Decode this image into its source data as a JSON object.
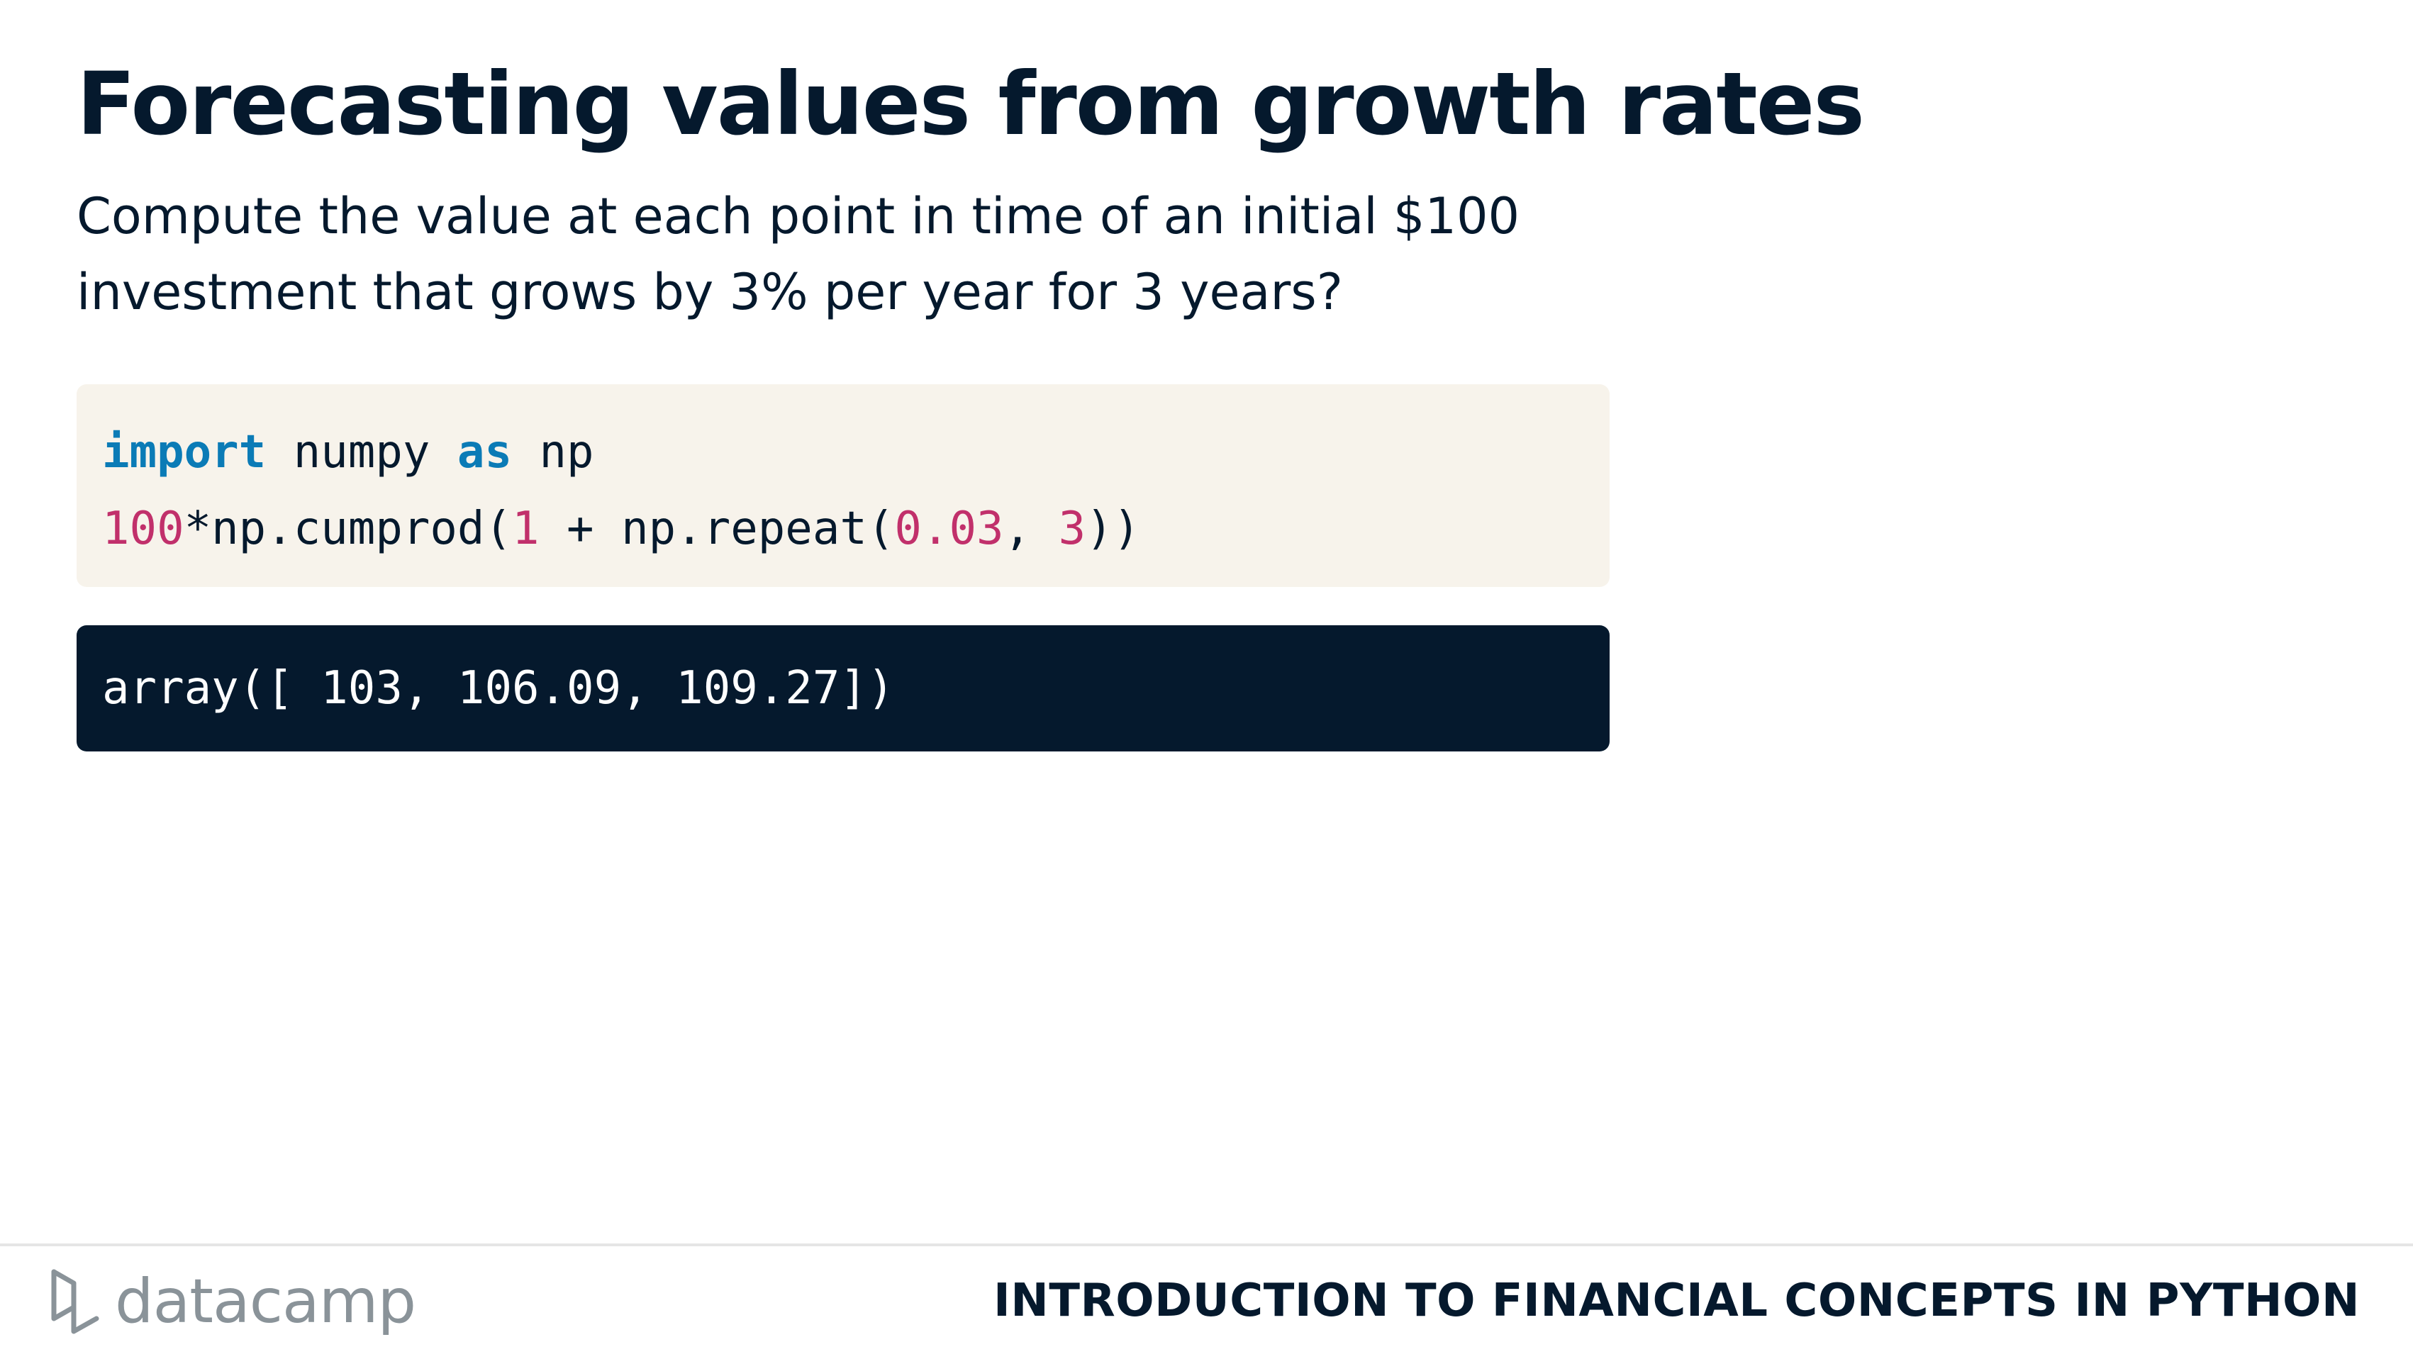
{
  "slide": {
    "title": "Forecasting values from growth rates",
    "subtitle": "Compute the value at each point in time of an initial $100 investment that grows by 3% per year for 3 years?"
  },
  "code": {
    "line1": {
      "t1": "import",
      "t2": " numpy ",
      "t3": "as",
      "t4": " np"
    },
    "line2": {
      "t1": "100",
      "t2": "*np.cumprod(",
      "t3": "1",
      "t4": " + np.repeat(",
      "t5": "0.03",
      "t6": ", ",
      "t7": "3",
      "t8": "))"
    }
  },
  "output": {
    "text": "array([ 103, 106.09, 109.27])"
  },
  "footer": {
    "brand": "datacamp",
    "course_title": "INTRODUCTION TO FINANCIAL CONCEPTS IN PYTHON"
  },
  "colors": {
    "navy": "#05192d",
    "code_bg": "#f7f3eb",
    "keyword": "#0b7bb6",
    "number": "#c1306b",
    "logo_gray": "#8a9399"
  },
  "icons": {
    "logo": "datacamp-logo-icon"
  }
}
